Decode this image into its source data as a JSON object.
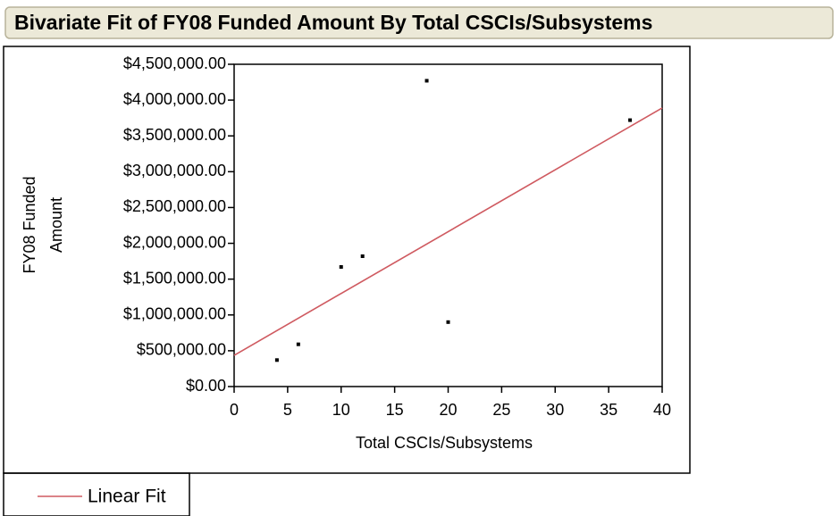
{
  "chart_data": {
    "type": "scatter",
    "title": "Bivariate Fit of FY08 Funded Amount By Total CSCIs/Subsystems",
    "xlabel": "Total CSCIs/Subsystems",
    "ylabel": [
      "FY08 Funded",
      "Amount"
    ],
    "x": [
      4,
      6,
      10,
      12,
      18,
      20,
      37
    ],
    "values": [
      370000,
      590000,
      1670000,
      1820000,
      4270000,
      900000,
      3720000
    ],
    "color": "#000000",
    "fit": {
      "name": "Linear Fit",
      "color": "#cf5a60",
      "x": [
        0,
        40
      ],
      "values": [
        436000,
        3890000
      ]
    },
    "xlim": [
      0,
      40
    ],
    "xticks": [
      0,
      5,
      10,
      15,
      20,
      25,
      30,
      35,
      40
    ],
    "ylim": [
      0,
      4500000
    ],
    "yticks": [
      {
        "value": 0,
        "label": "$0.00"
      },
      {
        "value": 500000,
        "label": "$500,000.00"
      },
      {
        "value": 1000000,
        "label": "$1,000,000.00"
      },
      {
        "value": 1500000,
        "label": "$1,500,000.00"
      },
      {
        "value": 2000000,
        "label": "$2,000,000.00"
      },
      {
        "value": 2500000,
        "label": "$2,500,000.00"
      },
      {
        "value": 3000000,
        "label": "$3,000,000.00"
      },
      {
        "value": 3500000,
        "label": "$3,500,000.00"
      },
      {
        "value": 4000000,
        "label": "$4,000,000.00"
      },
      {
        "value": 4500000,
        "label": "$4,500,000.00"
      }
    ]
  }
}
